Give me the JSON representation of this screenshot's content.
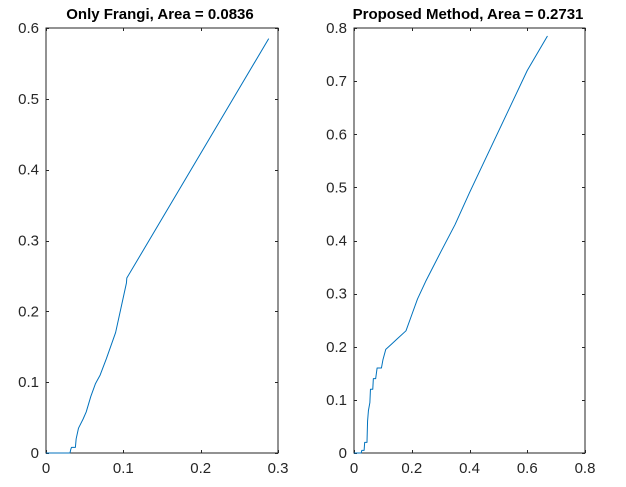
{
  "chart_data": [
    {
      "type": "line",
      "title": "Only Frangi, Area = 0.0836",
      "xlabel": "",
      "ylabel": "",
      "xlim": [
        0,
        0.3
      ],
      "ylim": [
        0,
        0.6
      ],
      "xticks": [
        0,
        0.1,
        0.2,
        0.3
      ],
      "yticks": [
        0,
        0.1,
        0.2,
        0.3,
        0.4,
        0.5,
        0.6
      ],
      "xtick_labels": [
        "0",
        "0.1",
        "0.2",
        "0.3"
      ],
      "ytick_labels": [
        "0",
        "0.1",
        "0.2",
        "0.3",
        "0.4",
        "0.5",
        "0.6"
      ],
      "grid": false,
      "series": [
        {
          "color": "#0072BD",
          "x": [
            0,
            0.031,
            0.032,
            0.033,
            0.038,
            0.039,
            0.042,
            0.048,
            0.052,
            0.058,
            0.064,
            0.07,
            0.078,
            0.09,
            0.098,
            0.104,
            0.1045,
            0.288
          ],
          "y": [
            0,
            0,
            0.005,
            0.008,
            0.008,
            0.02,
            0.035,
            0.048,
            0.058,
            0.08,
            0.098,
            0.11,
            0.133,
            0.17,
            0.21,
            0.24,
            0.247,
            0.585
          ]
        }
      ]
    },
    {
      "type": "line",
      "title": "Proposed Method, Area = 0.2731",
      "xlabel": "",
      "ylabel": "",
      "xlim": [
        0,
        0.8
      ],
      "ylim": [
        0,
        0.8
      ],
      "xticks": [
        0,
        0.2,
        0.4,
        0.6,
        0.8
      ],
      "yticks": [
        0,
        0.1,
        0.2,
        0.3,
        0.4,
        0.5,
        0.6,
        0.7,
        0.8
      ],
      "xtick_labels": [
        "0",
        "0.2",
        "0.4",
        "0.6",
        "0.8"
      ],
      "ytick_labels": [
        "0",
        "0.1",
        "0.2",
        "0.3",
        "0.4",
        "0.5",
        "0.6",
        "0.7",
        "0.8"
      ],
      "grid": false,
      "series": [
        {
          "color": "#0072BD",
          "x": [
            0,
            0.025,
            0.027,
            0.035,
            0.037,
            0.045,
            0.047,
            0.05,
            0.055,
            0.057,
            0.065,
            0.067,
            0.075,
            0.08,
            0.095,
            0.1,
            0.11,
            0.13,
            0.15,
            0.18,
            0.2,
            0.22,
            0.25,
            0.3,
            0.35,
            0.4,
            0.5,
            0.6,
            0.67
          ],
          "y": [
            0,
            0,
            0.005,
            0.005,
            0.02,
            0.02,
            0.06,
            0.08,
            0.095,
            0.12,
            0.12,
            0.14,
            0.14,
            0.16,
            0.16,
            0.175,
            0.195,
            0.205,
            0.215,
            0.23,
            0.26,
            0.29,
            0.325,
            0.378,
            0.43,
            0.49,
            0.605,
            0.72,
            0.785
          ]
        }
      ]
    }
  ]
}
